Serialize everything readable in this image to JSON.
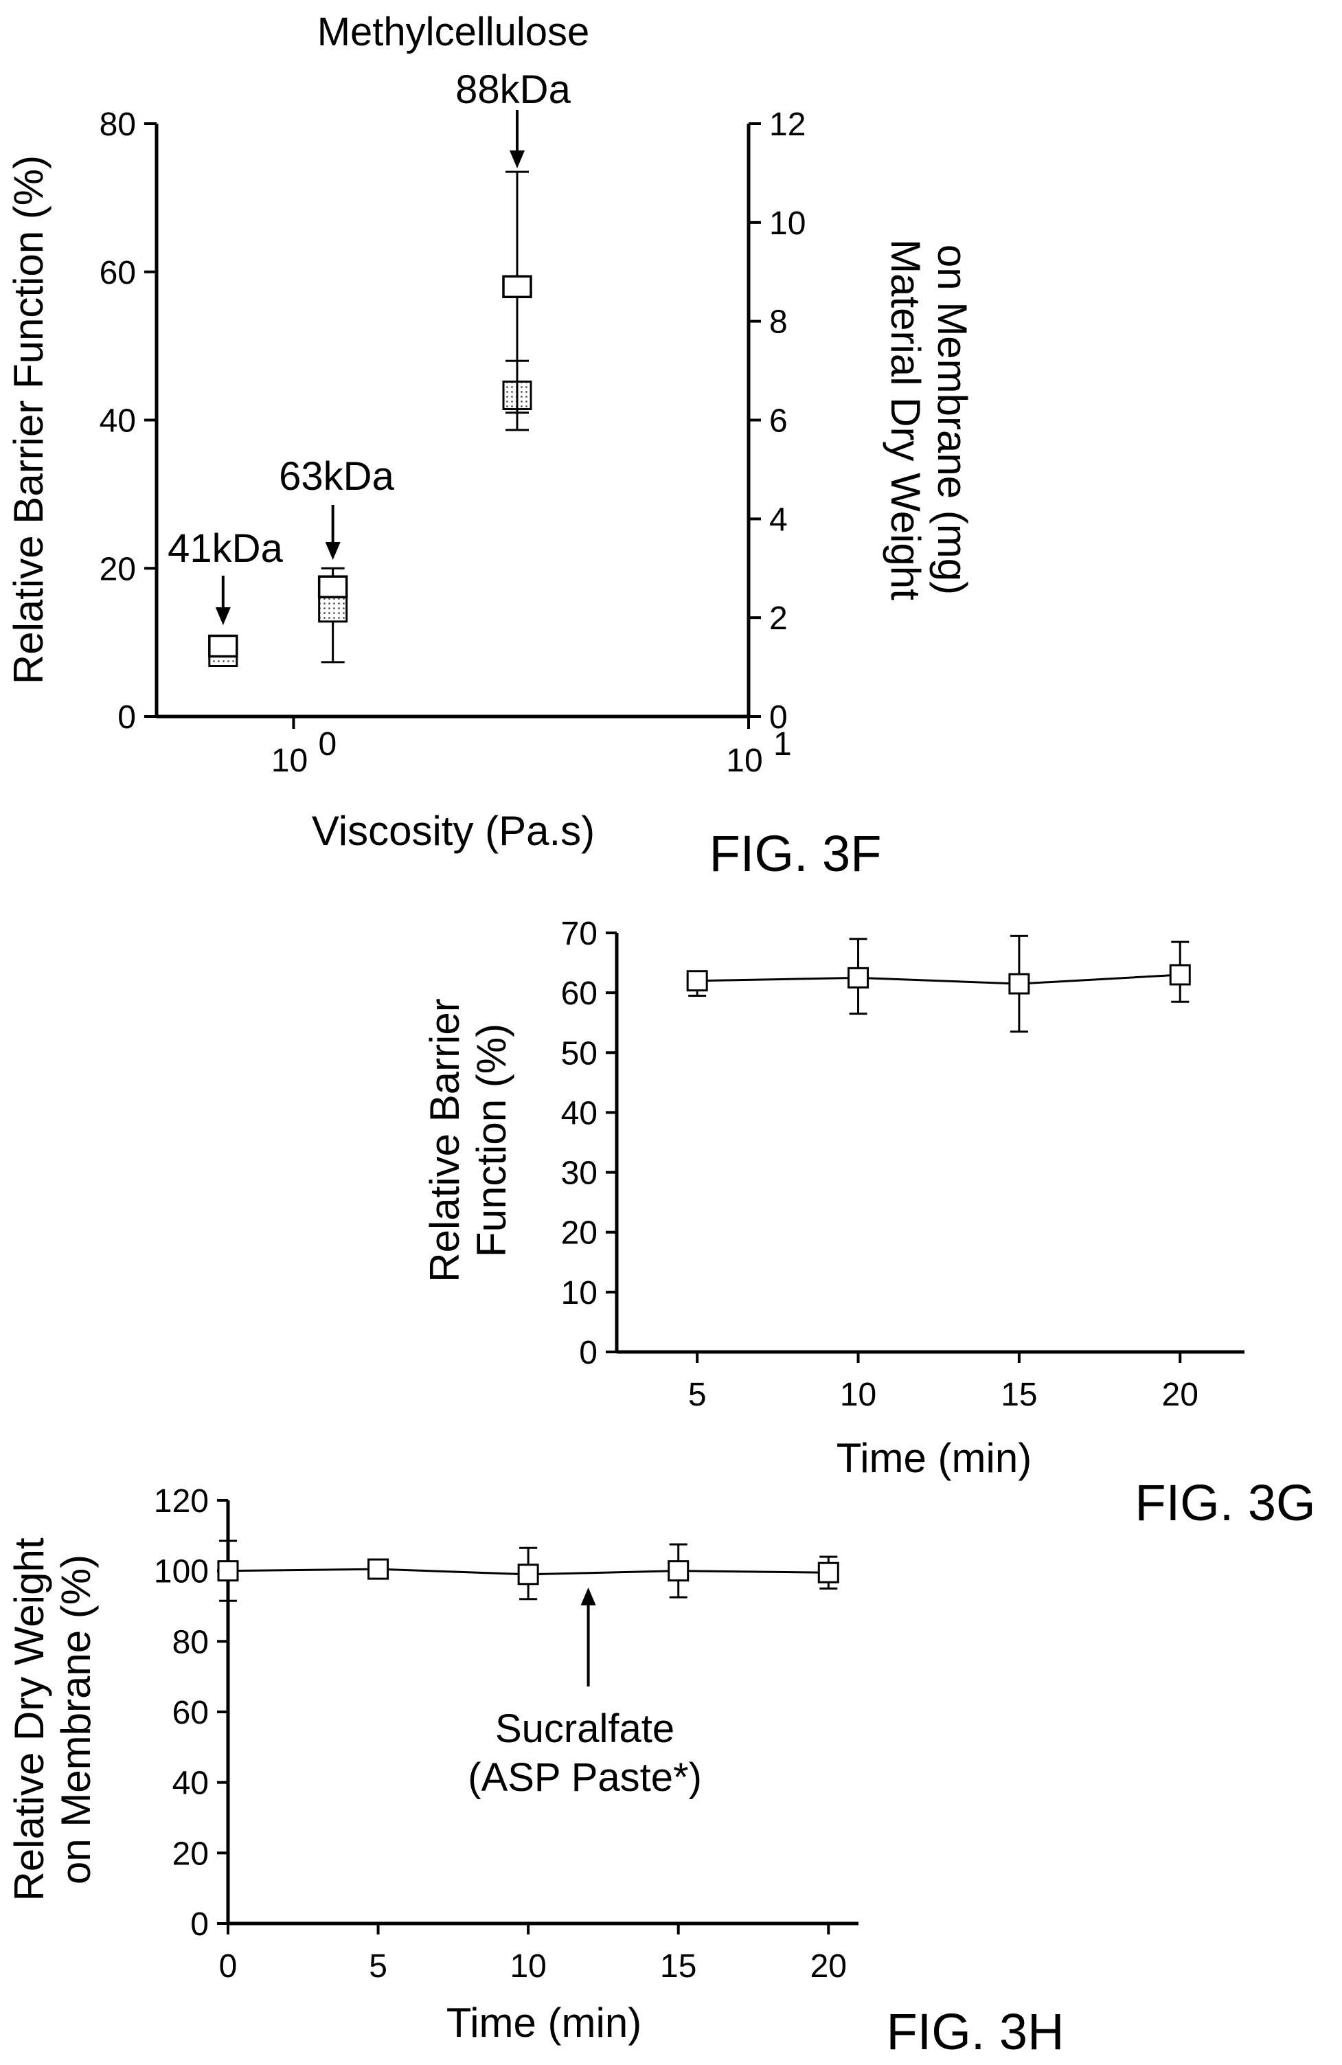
{
  "chart_data": [
    {
      "figure_label": "FIG. 3F",
      "type": "scatter",
      "xlabel": "Viscosity (Pa.s)",
      "ylabel": "Relative Barrier Function (%)",
      "y2label_lines": [
        "Material Dry Weight",
        "on Membrane (mg)"
      ],
      "xscale": "log",
      "xlim": [
        0.5,
        10
      ],
      "ylim": [
        0,
        80
      ],
      "y2lim": [
        0,
        12
      ],
      "x_ticks": [
        {
          "value": 1,
          "base": "10",
          "exp": "0"
        },
        {
          "value": 10,
          "base": "10",
          "exp": "1"
        }
      ],
      "y_ticks": [
        "0",
        "20",
        "40",
        "60",
        "80"
      ],
      "y2_ticks": [
        "0",
        "2",
        "4",
        "6",
        "8",
        "10",
        "12"
      ],
      "grid": false,
      "series": [
        {
          "marker": "open-square",
          "points": [
            {
              "x": 0.7,
              "y": 9.5,
              "err_lo": 9.5,
              "err_hi": 9.5
            },
            {
              "x": 1.22,
              "y": 17.5,
              "err_lo": 17.5,
              "err_hi": 20
            },
            {
              "x": 3.1,
              "y": 58,
              "err_lo": 41,
              "err_hi": 73.5
            }
          ]
        },
        {
          "marker": "dotted-square",
          "axis": "right",
          "points": [
            {
              "x": 0.7,
              "y2": 1.3,
              "err_lo": 1.3,
              "err_hi": 1.3
            },
            {
              "x": 1.22,
              "y2": 2.2,
              "err_lo": 1.1,
              "err_hi": 2.2
            },
            {
              "x": 3.1,
              "y2": 6.5,
              "err_lo": 5.8,
              "err_hi": 7.2
            }
          ]
        }
      ],
      "annotations": [
        {
          "lines": [
            "Methylcellulose",
            "88kDa"
          ],
          "x": 3.1
        },
        {
          "lines": [
            "63kDa"
          ],
          "x": 1.22
        },
        {
          "lines": [
            "41kDa"
          ],
          "x": 0.7
        }
      ]
    },
    {
      "figure_label": "FIG. 3G",
      "type": "line",
      "xlabel": "Time (min)",
      "ylabel_lines": [
        "Relative Barrier",
        "Function (%)"
      ],
      "xlim": [
        2.5,
        22
      ],
      "ylim": [
        0,
        70
      ],
      "x_ticks": [
        "5",
        "10",
        "15",
        "20"
      ],
      "y_ticks": [
        "0",
        "10",
        "20",
        "30",
        "40",
        "50",
        "60",
        "70"
      ],
      "grid": false,
      "series": [
        {
          "marker": "open-square",
          "x": [
            5,
            10,
            15,
            20
          ],
          "y": [
            62,
            62.5,
            61.5,
            63
          ],
          "err_lo": [
            59.5,
            56.5,
            53.5,
            58.5
          ],
          "err_hi": [
            63.5,
            69,
            69.5,
            68.5
          ]
        }
      ]
    },
    {
      "figure_label": "FIG. 3H",
      "type": "line",
      "xlabel": "Time (min)",
      "ylabel_lines": [
        "Relative Dry Weight",
        "on Membrane (%)"
      ],
      "xlim": [
        0,
        21
      ],
      "ylim": [
        0,
        120
      ],
      "x_ticks": [
        "0",
        "5",
        "10",
        "15",
        "20"
      ],
      "y_ticks": [
        "0",
        "20",
        "40",
        "60",
        "80",
        "100",
        "120"
      ],
      "grid": false,
      "series": [
        {
          "marker": "open-square",
          "x": [
            0,
            5,
            10,
            15,
            20
          ],
          "y": [
            100,
            100.5,
            99,
            100,
            99.5
          ],
          "err_lo": [
            91.5,
            100.5,
            92,
            92.5,
            95
          ],
          "err_hi": [
            108.5,
            100.5,
            106.5,
            107.5,
            104
          ]
        }
      ],
      "annotations": [
        {
          "lines": [
            "Sucralfate",
            "(ASP Paste*)"
          ],
          "x": 12,
          "y": 98
        }
      ]
    }
  ]
}
